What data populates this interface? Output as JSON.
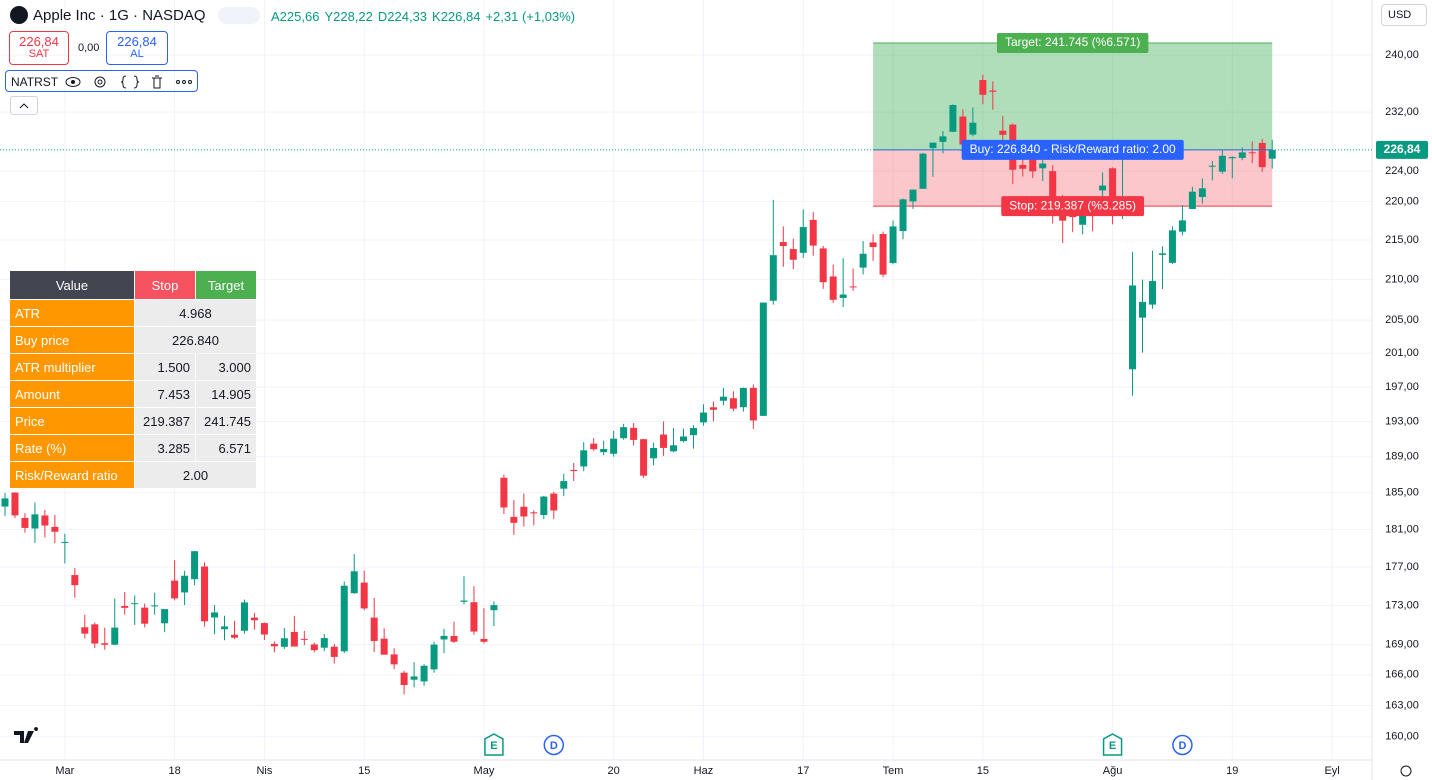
{
  "header": {
    "title": "Apple Inc · 1G · NASDAQ",
    "open": "A225,66",
    "high": "Y228,22",
    "low": "D224,33",
    "close": "K226,84",
    "change": "+2,31 (+1,03%)",
    "sell_price": "226,84",
    "sell": "SAT",
    "spread": "0,00",
    "buy_price": "226,84",
    "buy": "AL",
    "indicator": "NATRST",
    "currency": "USD"
  },
  "table": {
    "header": [
      "Value",
      "Stop",
      "Target"
    ],
    "rows": [
      [
        "ATR",
        "4.968"
      ],
      [
        "Buy price",
        "226.840"
      ],
      [
        "ATR multiplier",
        "1.500",
        "3.000"
      ],
      [
        "Amount",
        "7.453",
        "14.905"
      ],
      [
        "Price",
        "219.387",
        "241.745"
      ],
      [
        "Rate (%)",
        "3.285",
        "6.571"
      ],
      [
        "Risk/Reward ratio",
        "2.00"
      ]
    ]
  },
  "chart_data": {
    "type": "candlestick",
    "log_scale": true,
    "grid": true,
    "up_color": "#089981",
    "down_color": "#f23645",
    "open": [
      183.48,
      185.01,
      182.24,
      181.1,
      182.51,
      181.27,
      179.55,
      176.15,
      170.76,
      171.06,
      169.15,
      169.0,
      172.94,
      173.15,
      172.77,
      172.91,
      171.17,
      175.57,
      174.34,
      175.72,
      177.05,
      171.76,
      170.57,
      170.0,
      170.41,
      171.75,
      171.19,
      169.08,
      168.79,
      170.29,
      169.59,
      169.03,
      168.7,
      168.8,
      168.34,
      174.26,
      175.36,
      171.75,
      169.61,
      168.03,
      166.21,
      165.52,
      165.35,
      166.54,
      169.53,
      169.88,
      173.37,
      173.33,
      169.58,
      172.51,
      186.65,
      182.35,
      183.45,
      182.85,
      182.56,
      184.9,
      185.44,
      187.51,
      187.91,
      190.47,
      189.51,
      189.33,
      191.09,
      192.27,
      190.98,
      188.82,
      191.51,
      189.61,
      190.76,
      191.44,
      192.9,
      194.64,
      195.4,
      195.69,
      194.65,
      196.9,
      193.65,
      207.37,
      214.74,
      213.85,
      213.37,
      217.59,
      213.93,
      210.39,
      207.72,
      209.15,
      211.5,
      214.69,
      215.77,
      212.09,
      216.15,
      220.0,
      221.65,
      227.09,
      227.93,
      229.3,
      231.39,
      228.92,
      236.48,
      235.0,
      229.45,
      230.28,
      224.82,
      227.01,
      224.37,
      224.0,
      218.93,
      218.7,
      216.96,
      219.19,
      221.44,
      224.37,
      219.15,
      199.09,
      205.3,
      206.9,
      213.11,
      212.1,
      216.07,
      219.01,
      220.57,
      224.6,
      223.92,
      225.72,
      225.77,
      226.52,
      227.79,
      225.66
    ],
    "high": [
      184.96,
      185.04,
      182.76,
      183.92,
      183.12,
      182.57,
      180.53,
      176.9,
      172.04,
      171.24,
      170.73,
      173.7,
      174.38,
      174.03,
      173.19,
      174.31,
      172.62,
      177.71,
      176.61,
      178.67,
      177.49,
      173.05,
      171.94,
      171.42,
      173.6,
      172.23,
      171.25,
      169.34,
      170.68,
      171.92,
      170.39,
      169.2,
      170.08,
      169.09,
      175.46,
      178.36,
      176.63,
      173.76,
      170.65,
      168.64,
      166.4,
      167.26,
      167.05,
      169.3,
      170.61,
      171.34,
      176.03,
      174.99,
      172.71,
      173.42,
      187.0,
      184.2,
      184.9,
      183.07,
      184.66,
      185.09,
      187.1,
      188.3,
      190.65,
      191.1,
      190.81,
      191.92,
      192.73,
      192.82,
      191.0,
      190.58,
      193.0,
      192.25,
      192.18,
      192.57,
      194.99,
      195.32,
      196.9,
      196.5,
      196.94,
      197.3,
      207.16,
      220.2,
      216.75,
      215.17,
      218.95,
      218.63,
      214.24,
      211.89,
      212.7,
      211.38,
      214.86,
      215.74,
      216.07,
      217.51,
      220.38,
      221.55,
      226.45,
      227.85,
      229.4,
      233.08,
      232.39,
      232.64,
      237.23,
      236.27,
      231.46,
      230.44,
      226.8,
      227.78,
      226.94,
      224.8,
      220.85,
      219.49,
      219.3,
      220.33,
      223.82,
      224.48,
      225.6,
      213.5,
      209.99,
      213.64,
      214.2,
      216.78,
      219.51,
      221.89,
      223.03,
      225.35,
      226.83,
      225.99,
      227.17,
      227.98,
      228.34,
      228.22
    ],
    "low": [
      182.46,
      182.23,
      180.65,
      179.56,
      180.13,
      179.53,
      177.38,
      173.79,
      169.62,
      168.68,
      168.49,
      168.94,
      172.05,
      171.01,
      170.76,
      172.05,
      170.29,
      173.52,
      173.03,
      175.09,
      170.84,
      170.06,
      169.45,
      169.58,
      170.11,
      170.51,
      169.48,
      168.23,
      168.58,
      168.82,
      168.95,
      168.24,
      168.35,
      167.11,
      168.16,
      174.21,
      172.5,
      168.27,
      168.0,
      166.55,
      164.08,
      164.77,
      164.92,
      166.21,
      168.15,
      169.18,
      173.1,
      170.0,
      169.11,
      170.89,
      182.66,
      180.42,
      181.32,
      181.45,
      182.11,
      182.13,
      184.62,
      186.29,
      187.37,
      189.66,
      189.18,
      189.01,
      190.92,
      190.27,
      186.63,
      188.04,
      189.1,
      189.51,
      190.63,
      189.91,
      192.52,
      193.03,
      194.87,
      194.17,
      194.14,
      192.15,
      193.63,
      206.9,
      211.6,
      211.3,
      212.72,
      213.0,
      208.85,
      207.11,
      206.59,
      208.61,
      210.64,
      212.35,
      210.3,
      211.92,
      215.1,
      219.03,
      221.65,
      223.25,
      226.37,
      229.25,
      225.77,
      228.68,
      233.09,
      232.33,
      226.64,
      222.27,
      223.28,
      223.09,
      222.68,
      217.13,
      214.62,
      216.01,
      215.75,
      216.12,
      220.63,
      217.02,
      217.71,
      196.0,
      201.07,
      206.39,
      208.83,
      211.97,
      215.6,
      219.01,
      219.7,
      222.76,
      223.65,
      223.04,
      225.45,
      225.05,
      223.9,
      224.33
    ],
    "close": [
      184.37,
      182.52,
      181.16,
      182.63,
      181.42,
      180.75,
      179.66,
      175.1,
      170.12,
      169.12,
      169.0,
      170.73,
      172.75,
      173.23,
      171.13,
      173.0,
      172.62,
      173.72,
      176.08,
      178.67,
      171.37,
      172.28,
      170.85,
      169.71,
      173.31,
      171.48,
      170.03,
      168.84,
      169.65,
      168.82,
      169.58,
      168.45,
      169.67,
      167.78,
      175.04,
      176.55,
      172.69,
      169.38,
      168.0,
      167.04,
      165.0,
      165.84,
      166.9,
      169.02,
      169.89,
      169.3,
      173.5,
      170.33,
      169.3,
      173.03,
      183.38,
      181.71,
      182.4,
      182.74,
      184.57,
      183.05,
      186.28,
      187.43,
      189.72,
      189.84,
      189.87,
      191.04,
      192.35,
      190.9,
      186.88,
      189.98,
      189.99,
      190.29,
      191.29,
      192.25,
      194.03,
      194.35,
      195.87,
      194.48,
      196.89,
      193.12,
      207.15,
      213.07,
      214.24,
      212.49,
      216.67,
      214.29,
      209.68,
      207.49,
      208.14,
      209.07,
      213.25,
      214.1,
      210.62,
      216.75,
      220.27,
      221.55,
      226.34,
      227.82,
      228.68,
      232.98,
      227.57,
      230.54,
      234.4,
      234.82,
      228.88,
      224.18,
      224.31,
      223.96,
      225.01,
      218.54,
      217.49,
      217.96,
      218.24,
      218.8,
      222.08,
      218.36,
      219.86,
      209.27,
      207.23,
      209.82,
      213.31,
      216.24,
      217.53,
      221.27,
      221.72,
      224.72,
      226.05,
      225.89,
      226.51,
      226.4,
      224.53,
      226.84
    ],
    "xlim": [
      -0.5,
      137
    ],
    "xticks": [
      {
        "value": 6,
        "label": "Mar"
      },
      {
        "value": 17,
        "label": "18"
      },
      {
        "value": 26,
        "label": "Nis"
      },
      {
        "value": 36,
        "label": "15"
      },
      {
        "value": 48,
        "label": "May"
      },
      {
        "value": 61,
        "label": "20"
      },
      {
        "value": 70,
        "label": "Haz"
      },
      {
        "value": 80,
        "label": "17"
      },
      {
        "value": 89,
        "label": "Tem"
      },
      {
        "value": 98,
        "label": "15"
      },
      {
        "value": 111,
        "label": "Ağu"
      },
      {
        "value": 123,
        "label": "19"
      },
      {
        "value": 133,
        "label": "Eyl"
      }
    ],
    "ylim": [
      157.8,
      248
    ],
    "yticks": [
      {
        "value": 240,
        "label": "240,00"
      },
      {
        "value": 232,
        "label": "232,00"
      },
      {
        "value": 224,
        "label": "224,00"
      },
      {
        "value": 220,
        "label": "220,00"
      },
      {
        "value": 215,
        "label": "215,00"
      },
      {
        "value": 210,
        "label": "210,00"
      },
      {
        "value": 205,
        "label": "205,00"
      },
      {
        "value": 201,
        "label": "201,00"
      },
      {
        "value": 197,
        "label": "197,00"
      },
      {
        "value": 193,
        "label": "193,00"
      },
      {
        "value": 189,
        "label": "189,00"
      },
      {
        "value": 185,
        "label": "185,00"
      },
      {
        "value": 181,
        "label": "181,00"
      },
      {
        "value": 177,
        "label": "177,00"
      },
      {
        "value": 173,
        "label": "173,00"
      },
      {
        "value": 169,
        "label": "169,00"
      },
      {
        "value": 166,
        "label": "166,00"
      },
      {
        "value": 163,
        "label": "163,00"
      },
      {
        "value": 160,
        "label": "160,00"
      }
    ],
    "last_price": {
      "value": 226.84,
      "label": "226,84"
    },
    "position": {
      "start": 87,
      "end": 127,
      "entry": 226.84,
      "target": 241.745,
      "stop": 219.387,
      "target_label": "Target: 241.745 (%6.571)",
      "entry_label": "Buy: 226.840 - Risk/Reward ratio: 2.00",
      "stop_label": "Stop: 219.387 (%3.285)"
    },
    "events": [
      {
        "label": "E",
        "index": 49
      },
      {
        "label": "D",
        "index": 55
      },
      {
        "label": "E",
        "index": 111
      },
      {
        "label": "D",
        "index": 118
      }
    ]
  }
}
